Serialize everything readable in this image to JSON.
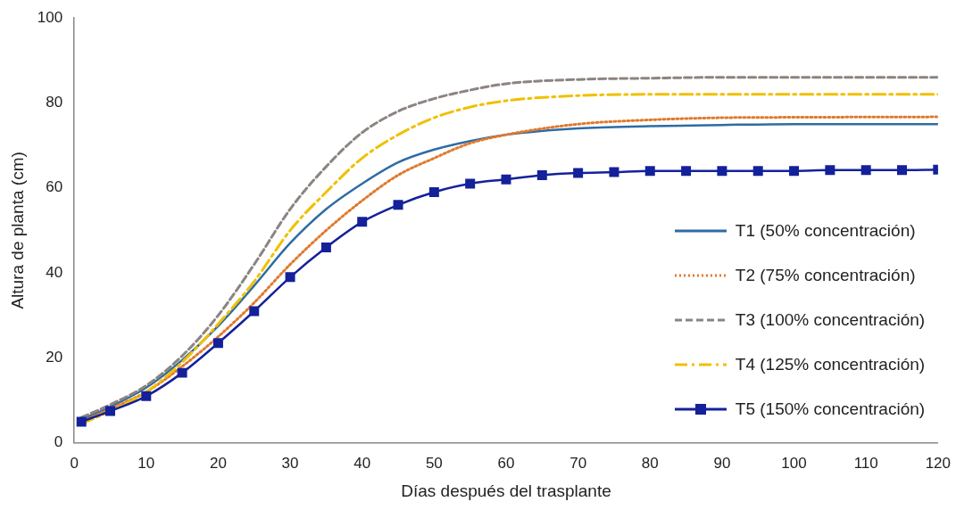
{
  "chart_data": {
    "type": "line",
    "xlabel": "Días después del trasplante",
    "ylabel": "Altura de planta (cm)",
    "xlim": [
      0,
      120
    ],
    "xticks": [
      0,
      10,
      20,
      30,
      40,
      50,
      60,
      70,
      80,
      90,
      100,
      110,
      120
    ],
    "ylim": [
      0,
      100
    ],
    "yticks": [
      0,
      20,
      40,
      60,
      80,
      100
    ],
    "grid": false,
    "legend": "right",
    "marker": "none",
    "series": [
      {
        "name": "T1 (50% concentración)",
        "color": "#2e6ca4",
        "line_style": "solid",
        "x": [
          1,
          5,
          10,
          15,
          20,
          25,
          30,
          35,
          40,
          45,
          50,
          55,
          60,
          70,
          80,
          90,
          100,
          120
        ],
        "values": [
          5.5,
          8.5,
          13,
          19.5,
          27.5,
          37,
          47,
          55,
          61,
          66,
          69,
          71,
          72.5,
          74,
          74.5,
          74.8,
          75,
          75
        ]
      },
      {
        "name": "T2 (75% concentración)",
        "color": "#e07a2e",
        "line_style": "dotted",
        "x": [
          1,
          5,
          10,
          15,
          20,
          25,
          30,
          35,
          40,
          45,
          50,
          55,
          60,
          70,
          80,
          90,
          100,
          120
        ],
        "values": [
          5,
          8,
          12,
          18,
          25,
          33,
          42,
          50,
          57,
          63,
          67,
          70.5,
          72.5,
          75,
          76,
          76.5,
          76.6,
          76.7
        ]
      },
      {
        "name": "T3 (100% concentración)",
        "color": "#8c8480",
        "line_style": "dashed",
        "x": [
          1,
          5,
          10,
          15,
          20,
          25,
          30,
          35,
          40,
          45,
          50,
          55,
          60,
          70,
          80,
          90,
          100,
          120
        ],
        "values": [
          6,
          9,
          13.5,
          20.5,
          30,
          42,
          55,
          65,
          73,
          78,
          81,
          83,
          84.5,
          85.5,
          85.8,
          86,
          86,
          86
        ]
      },
      {
        "name": "T4 (125% concentración)",
        "color": "#f0c000",
        "line_style": "dashdot",
        "x": [
          1,
          5,
          10,
          15,
          20,
          25,
          30,
          35,
          40,
          45,
          50,
          55,
          60,
          70,
          80,
          90,
          100,
          120
        ],
        "values": [
          4.5,
          7.5,
          12,
          19,
          28,
          38,
          50,
          59,
          67,
          72.5,
          76.5,
          79,
          80.5,
          81.7,
          82,
          82,
          82,
          82
        ]
      },
      {
        "name": "T5 (150% concentración)",
        "color": "#14219a",
        "line_style": "solid",
        "marker": "square",
        "x": [
          1,
          5,
          10,
          15,
          20,
          25,
          30,
          35,
          40,
          45,
          50,
          55,
          60,
          65,
          70,
          75,
          80,
          85,
          90,
          95,
          100,
          105,
          110,
          115,
          120
        ],
        "values": [
          5,
          7.5,
          11,
          16.5,
          23.5,
          31,
          39,
          46,
          52,
          56,
          59,
          61,
          62,
          63,
          63.5,
          63.7,
          64,
          64,
          64,
          64,
          64,
          64.2,
          64.2,
          64.2,
          64.3
        ]
      }
    ]
  }
}
